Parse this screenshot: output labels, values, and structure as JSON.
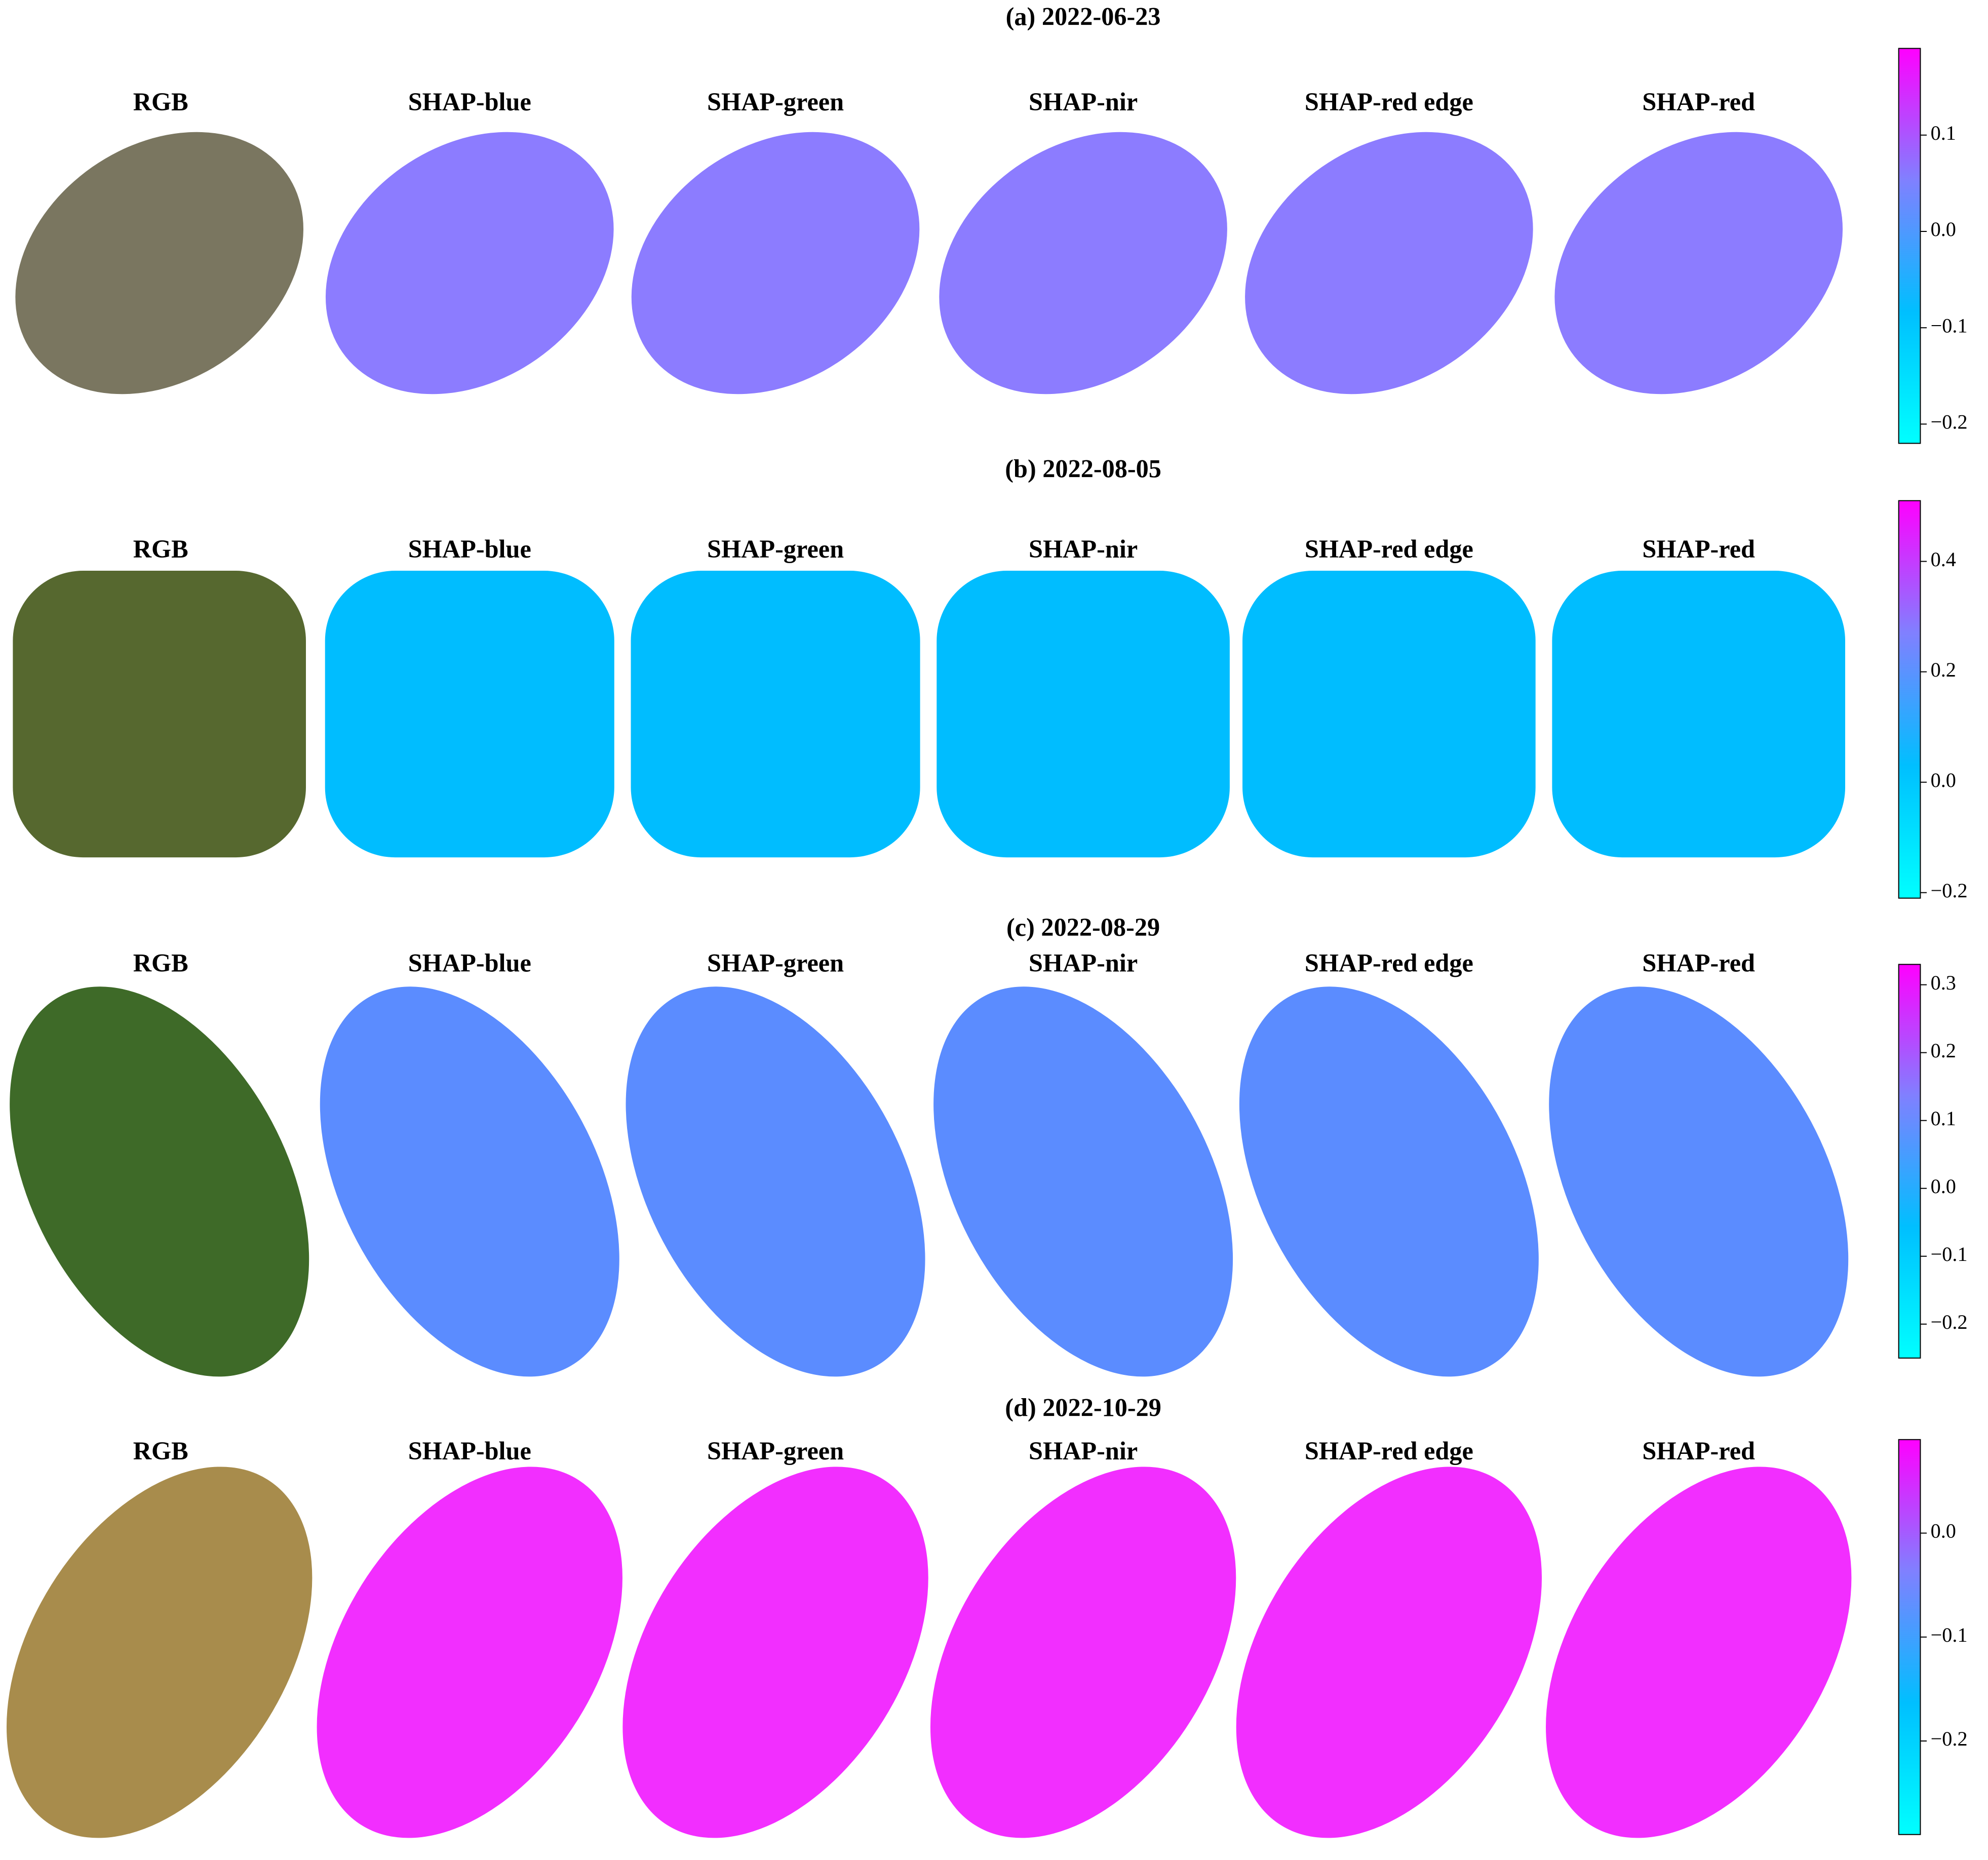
{
  "chart_data": [
    {
      "type": "heatmap",
      "title": "(a) 2022-06-23",
      "columns": [
        "RGB",
        "SHAP-blue",
        "SHAP-green",
        "SHAP-nir",
        "SHAP-red edge",
        "SHAP-red"
      ],
      "colors": [
        "#00ffff",
        "#00bfff",
        "#8080ff",
        "#ff00ff"
      ],
      "zlim": [
        -0.22,
        0.19
      ],
      "zticks": [
        0.1,
        {
          "value": 0,
          "label": "0.0"
        },
        {
          "value": -0.1,
          "label": "−0.1"
        },
        {
          "value": -0.2,
          "label": "−0.2"
        }
      ]
    },
    {
      "type": "heatmap",
      "title": "(b) 2022-08-05",
      "columns": [
        "RGB",
        "SHAP-blue",
        "SHAP-green",
        "SHAP-nir",
        "SHAP-red edge",
        "SHAP-red"
      ],
      "colors": [
        "#00ffff",
        "#00bfff",
        "#8080ff",
        "#ff00ff"
      ],
      "zlim": [
        -0.21,
        0.51
      ],
      "zticks": [
        0.4,
        0.2,
        {
          "value": 0,
          "label": "0.0"
        },
        {
          "value": -0.2,
          "label": "−0.2"
        }
      ]
    },
    {
      "type": "heatmap",
      "title": "(c) 2022-08-29",
      "columns": [
        "RGB",
        "SHAP-blue",
        "SHAP-green",
        "SHAP-nir",
        "SHAP-red edge",
        "SHAP-red"
      ],
      "colors": [
        "#00ffff",
        "#00bfff",
        "#8080ff",
        "#ff00ff"
      ],
      "zlim": [
        -0.25,
        0.33
      ],
      "zticks": [
        0.3,
        0.2,
        0.1,
        {
          "value": 0,
          "label": "0.0"
        },
        {
          "value": -0.1,
          "label": "−0.1"
        },
        {
          "value": -0.2,
          "label": "−0.2"
        }
      ]
    },
    {
      "type": "heatmap",
      "title": "(d) 2022-10-29",
      "columns": [
        "RGB",
        "SHAP-blue",
        "SHAP-green",
        "SHAP-nir",
        "SHAP-red edge",
        "SHAP-red"
      ],
      "colors": [
        "#00ffff",
        "#00bfff",
        "#8080ff",
        "#ff00ff"
      ],
      "zlim": [
        -0.29,
        0.09
      ],
      "zticks": [
        {
          "value": 0,
          "label": "0.0"
        },
        {
          "value": -0.1,
          "label": "−0.1"
        },
        {
          "value": -0.2,
          "label": "−0.2"
        }
      ]
    }
  ]
}
